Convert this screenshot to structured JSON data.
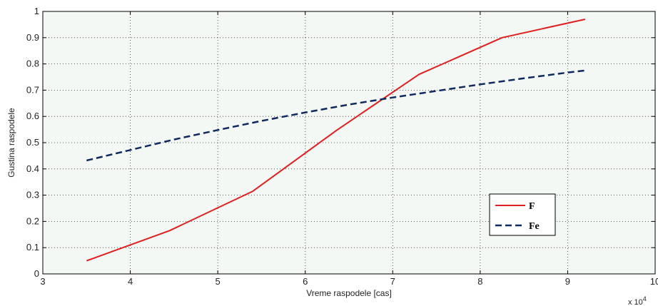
{
  "chart_data": {
    "type": "line",
    "xlabel": "Vreme raspodele [cas]",
    "ylabel": "Gustina raspodele",
    "x_multiplier": "x 10",
    "x_multiplier_exp": "4",
    "xlim": [
      3,
      10
    ],
    "ylim": [
      0,
      1
    ],
    "xticks": [
      "3",
      "4",
      "5",
      "6",
      "7",
      "8",
      "9",
      "10"
    ],
    "yticks": [
      "0",
      "0.1",
      "0.2",
      "0.3",
      "0.4",
      "0.5",
      "0.6",
      "0.7",
      "0.8",
      "0.9",
      "1"
    ],
    "grid": true,
    "legend_position": "lower-right",
    "series": [
      {
        "name": "F",
        "color": "#e02020",
        "style": "solid",
        "x": [
          3.5,
          4.45,
          5.4,
          6.35,
          7.3,
          8.25,
          9.2
        ],
        "y": [
          0.05,
          0.165,
          0.315,
          0.545,
          0.76,
          0.9,
          0.97
        ]
      },
      {
        "name": "Fe",
        "color": "#0e2a5e",
        "style": "dashed",
        "x": [
          3.5,
          4.0,
          4.5,
          5.0,
          5.5,
          6.0,
          6.5,
          7.0,
          7.5,
          8.0,
          8.5,
          9.0,
          9.2
        ],
        "y": [
          0.432,
          0.472,
          0.512,
          0.548,
          0.583,
          0.615,
          0.645,
          0.672,
          0.697,
          0.722,
          0.745,
          0.767,
          0.775
        ]
      }
    ]
  }
}
